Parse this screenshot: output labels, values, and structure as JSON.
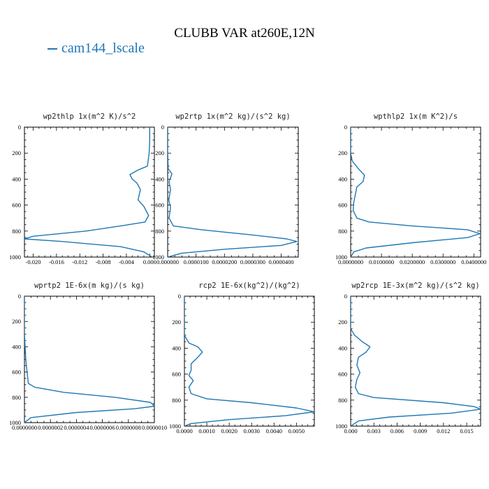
{
  "title": "CLUBB VAR at260E,12N",
  "legend": {
    "entries": [
      {
        "name": "cam144_lscale",
        "color": "#1f77b4"
      }
    ],
    "placement": "top-left"
  },
  "colors": {
    "series": "#1f77b4",
    "frame": "#000000"
  },
  "chart_data": [
    {
      "type": "line",
      "title": "wp2thlp  1x(m^2 K)/s^2",
      "xlabel": "",
      "ylabel": "",
      "xlim": [
        -0.0215,
        0.0008
      ],
      "ylim": [
        0,
        1000
      ],
      "y_inverted": true,
      "x_tick_labels": [
        "-0.020",
        "-0.016",
        "-0.012",
        "-0.008",
        "-0.004",
        "0.000"
      ],
      "x_tick_values": [
        -0.02,
        -0.016,
        -0.012,
        -0.008,
        -0.004,
        0.0
      ],
      "y_tick_labels": [
        "0",
        "200",
        "400",
        "600",
        "800",
        "1000"
      ],
      "y_tick_values": [
        0,
        200,
        400,
        600,
        800,
        1000
      ],
      "series": [
        {
          "x": [
            0.0,
            0.0,
            -0.0001,
            -0.0004,
            -0.002,
            -0.0034,
            -0.003,
            -0.0022,
            -0.0016,
            -0.002,
            -0.001,
            -0.0002,
            -0.0008,
            -0.005,
            -0.011,
            -0.02,
            -0.0215,
            -0.015,
            -0.005,
            -0.001,
            0.0004
          ],
          "y": [
            0,
            100,
            200,
            300,
            330,
            365,
            400,
            430,
            480,
            560,
            610,
            680,
            730,
            760,
            800,
            840,
            860,
            880,
            920,
            960,
            1000
          ]
        }
      ]
    },
    {
      "type": "line",
      "title": "wp2rtp  1x(m^2 kg)/(s^2 kg)",
      "xlabel": "",
      "ylabel": "",
      "xlim": [
        0,
        4.6e-05
      ],
      "ylim": [
        0,
        1000
      ],
      "y_inverted": true,
      "x_tick_labels": [
        "0.000000",
        "0.0000100",
        "0.0000200",
        "0.0000300",
        "0.0000400"
      ],
      "x_tick_values": [
        0,
        1e-05,
        2e-05,
        3e-05,
        4e-05
      ],
      "y_tick_labels": [
        "0",
        "200",
        "400",
        "600",
        "800",
        "1000"
      ],
      "y_tick_values": [
        0,
        200,
        400,
        600,
        800,
        1000
      ],
      "series": [
        {
          "x": [
            0,
            0,
            2e-07,
            1.5e-06,
            5e-07,
            1e-06,
            4e-07,
            1e-06,
            5e-07,
            2e-06,
            1.2e-05,
            3e-05,
            4.2e-05,
            4.55e-05,
            4e-05,
            2e-05,
            5e-06,
            0
          ],
          "y": [
            0,
            200,
            320,
            360,
            420,
            480,
            560,
            620,
            700,
            760,
            790,
            830,
            860,
            880,
            910,
            940,
            970,
            1000
          ]
        }
      ]
    },
    {
      "type": "line",
      "title": "wpthlp2  1x(m K^2)/s",
      "xlabel": "",
      "ylabel": "",
      "xlim": [
        0,
        0.0422
      ],
      "ylim": [
        0,
        1000
      ],
      "y_inverted": true,
      "x_tick_labels": [
        "0.0000000",
        "0.0100000",
        "0.0200000",
        "0.0300000",
        "0.0400000"
      ],
      "x_tick_values": [
        0,
        0.01,
        0.02,
        0.03,
        0.04
      ],
      "y_tick_labels": [
        "0",
        "200",
        "400",
        "600",
        "800",
        "1000"
      ],
      "y_tick_values": [
        0,
        200,
        400,
        600,
        800,
        1000
      ],
      "series": [
        {
          "x": [
            0,
            0,
            0.0005,
            0.0025,
            0.0045,
            0.004,
            0.002,
            0.0015,
            0.001,
            0.0008,
            0.002,
            0.006,
            0.02,
            0.038,
            0.042,
            0.038,
            0.02,
            0.005,
            0.001,
            0
          ],
          "y": [
            0,
            200,
            260,
            320,
            370,
            420,
            460,
            520,
            580,
            640,
            700,
            730,
            760,
            790,
            820,
            850,
            890,
            930,
            960,
            1000
          ]
        }
      ]
    },
    {
      "type": "line",
      "title": "wprtp2  1E-6x(m kg)/(s kg)",
      "xlabel": "",
      "ylabel": "",
      "xlim": [
        0,
        1e-06
      ],
      "ylim": [
        0,
        1000
      ],
      "y_inverted": true,
      "x_tick_labels": [
        "0.0000000",
        "0.0000002",
        "0.0000004",
        "0.0000006",
        "0.0000008",
        "0.0000010"
      ],
      "x_tick_values": [
        0,
        2e-07,
        4e-07,
        6e-07,
        8e-07,
        1e-06
      ],
      "y_tick_labels": [
        "0",
        "200",
        "400",
        "600",
        "800",
        "1000"
      ],
      "y_tick_values": [
        0,
        200,
        400,
        600,
        800,
        1000
      ],
      "series": [
        {
          "x": [
            0,
            0,
            5e-09,
            1e-08,
            2e-08,
            3e-08,
            8e-08,
            3e-07,
            7e-07,
            9.7e-07,
            1e-06,
            8.5e-07,
            4e-07,
            5e-08,
            0
          ],
          "y": [
            0,
            300,
            400,
            500,
            600,
            690,
            720,
            760,
            800,
            840,
            870,
            890,
            920,
            960,
            1000
          ]
        }
      ]
    },
    {
      "type": "line",
      "title": "rcp2  1E-6x(kg^2)/(kg^2)",
      "xlabel": "",
      "ylabel": "",
      "xlim": [
        0,
        0.0058
      ],
      "ylim": [
        0,
        1000
      ],
      "y_inverted": true,
      "x_tick_labels": [
        "0.0000",
        "0.0010",
        "0.0020",
        "0.0030",
        "0.0040",
        "0.0050"
      ],
      "x_tick_values": [
        0,
        0.001,
        0.002,
        0.003,
        0.004,
        0.005
      ],
      "y_tick_labels": [
        "0",
        "200",
        "400",
        "600",
        "800",
        "1000"
      ],
      "y_tick_values": [
        0,
        200,
        400,
        600,
        800,
        1000
      ],
      "series": [
        {
          "x": [
            0,
            0,
            0.0002,
            0.0006,
            0.0008,
            0.0006,
            0.0003,
            0.0003,
            0.0002,
            0.0004,
            0.0002,
            0.0003,
            0.001,
            0.003,
            0.005,
            0.0058,
            0.0045,
            0.002,
            0.0003,
            0
          ],
          "y": [
            0,
            300,
            360,
            390,
            430,
            470,
            520,
            570,
            610,
            650,
            700,
            750,
            790,
            820,
            860,
            890,
            920,
            950,
            980,
            1000
          ]
        }
      ]
    },
    {
      "type": "line",
      "title": "wp2rcp  1E-3x(m^2 kg)/(s^2 kg)",
      "xlabel": "",
      "ylabel": "",
      "xlim": [
        0,
        0.0168
      ],
      "ylim": [
        0,
        1000
      ],
      "y_inverted": true,
      "x_tick_labels": [
        "0.000",
        "0.003",
        "0.006",
        "0.009",
        "0.012",
        "0.015"
      ],
      "x_tick_values": [
        0,
        0.003,
        0.006,
        0.009,
        0.012,
        0.015
      ],
      "y_tick_labels": [
        "0",
        "200",
        "400",
        "600",
        "800",
        "1000"
      ],
      "y_tick_values": [
        0,
        200,
        400,
        600,
        800,
        1000
      ],
      "series": [
        {
          "x": [
            0,
            0,
            0.0005,
            0.0015,
            0.0025,
            0.002,
            0.001,
            0.0008,
            0.0012,
            0.0008,
            0.0006,
            0.001,
            0.003,
            0.012,
            0.016,
            0.0168,
            0.013,
            0.005,
            0.001,
            0
          ],
          "y": [
            0,
            250,
            300,
            350,
            390,
            430,
            470,
            530,
            590,
            640,
            700,
            750,
            780,
            820,
            850,
            870,
            900,
            930,
            960,
            1000
          ]
        }
      ]
    }
  ]
}
